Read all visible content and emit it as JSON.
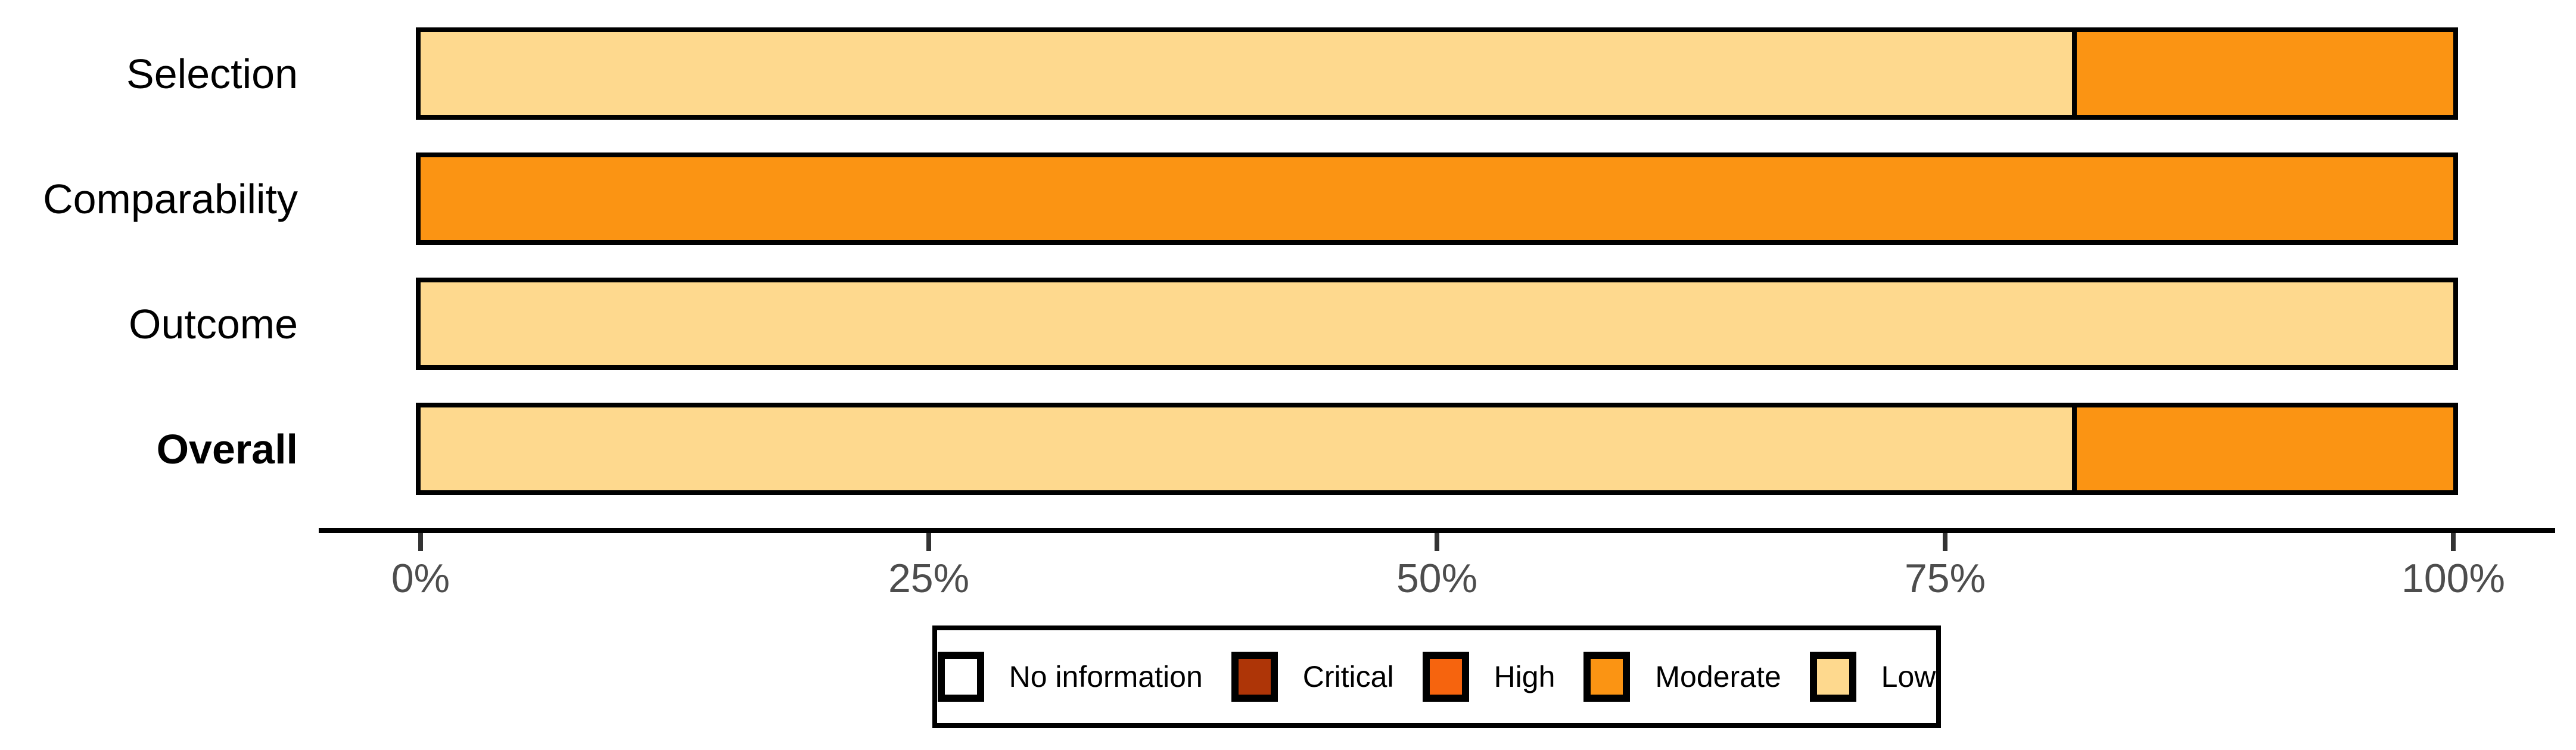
{
  "chart_data": {
    "type": "bar",
    "orientation": "horizontal",
    "stacked": true,
    "unit": "percent",
    "title": "",
    "xlabel": "",
    "ylabel": "",
    "categories": [
      "Selection",
      "Comparability",
      "Outcome",
      "Overall"
    ],
    "bold_categories": [
      "Overall"
    ],
    "series": [
      {
        "name": "No information",
        "values": [
          0,
          0,
          0,
          0
        ]
      },
      {
        "name": "Critical",
        "values": [
          0,
          0,
          0,
          0
        ]
      },
      {
        "name": "High",
        "values": [
          0,
          0,
          0,
          0
        ]
      },
      {
        "name": "Moderate",
        "values": [
          18.75,
          100,
          0,
          18.75
        ]
      },
      {
        "name": "Low",
        "values": [
          81.25,
          0,
          100,
          81.25
        ]
      }
    ],
    "stack_order_left_to_right": [
      "Low",
      "Moderate",
      "High",
      "Critical",
      "No information"
    ],
    "xlim": [
      0,
      100
    ],
    "x_tick_values": [
      0,
      25,
      50,
      75,
      100
    ],
    "x_tick_labels": [
      "0%",
      "25%",
      "50%",
      "75%",
      "100%"
    ],
    "grid": false,
    "legend_position": "bottom"
  },
  "legend": {
    "items": [
      {
        "label": "No information",
        "color": "#FFFFFF"
      },
      {
        "label": "Critical",
        "color": "#AE3507"
      },
      {
        "label": "High",
        "color": "#F6640E"
      },
      {
        "label": "Moderate",
        "color": "#FB9413"
      },
      {
        "label": "Low",
        "color": "#FED98E"
      }
    ]
  },
  "colors": {
    "background": "#FFFFFF",
    "bar_border": "#000000",
    "axis_line": "#000000",
    "tick_mark": "#333333",
    "tick_label": "#4D4D4D",
    "category_label": "#000000"
  }
}
